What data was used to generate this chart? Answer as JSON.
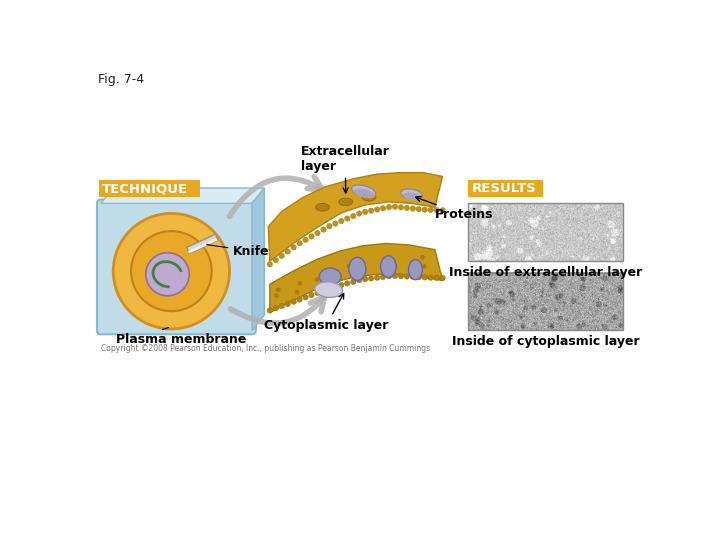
{
  "fig_label": "Fig. 7-4",
  "technique_label": "TECHNIQUE",
  "results_label": "RESULTS",
  "labels": {
    "extracellular_layer": "Extracellular\nlayer",
    "proteins": "Proteins",
    "knife": "Knife",
    "plasma_membrane": "Plasma membrane",
    "cytoplasmic_layer": "Cytoplasmic layer",
    "inside_extracellular": "Inside of extracellular layer",
    "inside_cytoplasmic": "Inside of cytoplasmic layer",
    "copyright": "Copyright ©2008 Pearson Education, Inc., publishing as Pearson Benjamin Cummings"
  },
  "colors": {
    "background": "#ffffff",
    "technique_box": "#E8A820",
    "results_box": "#E8A820",
    "label_text": "#000000",
    "header_text": "#ffffff",
    "fig_label_color": "#333333",
    "cell_outer": "#b8dce8",
    "membrane_color": "#d4a030",
    "protein_color_upper": "#a8a8cc",
    "protein_color_lower": "#9090b8",
    "arrow_color": "#b0b0b0"
  }
}
